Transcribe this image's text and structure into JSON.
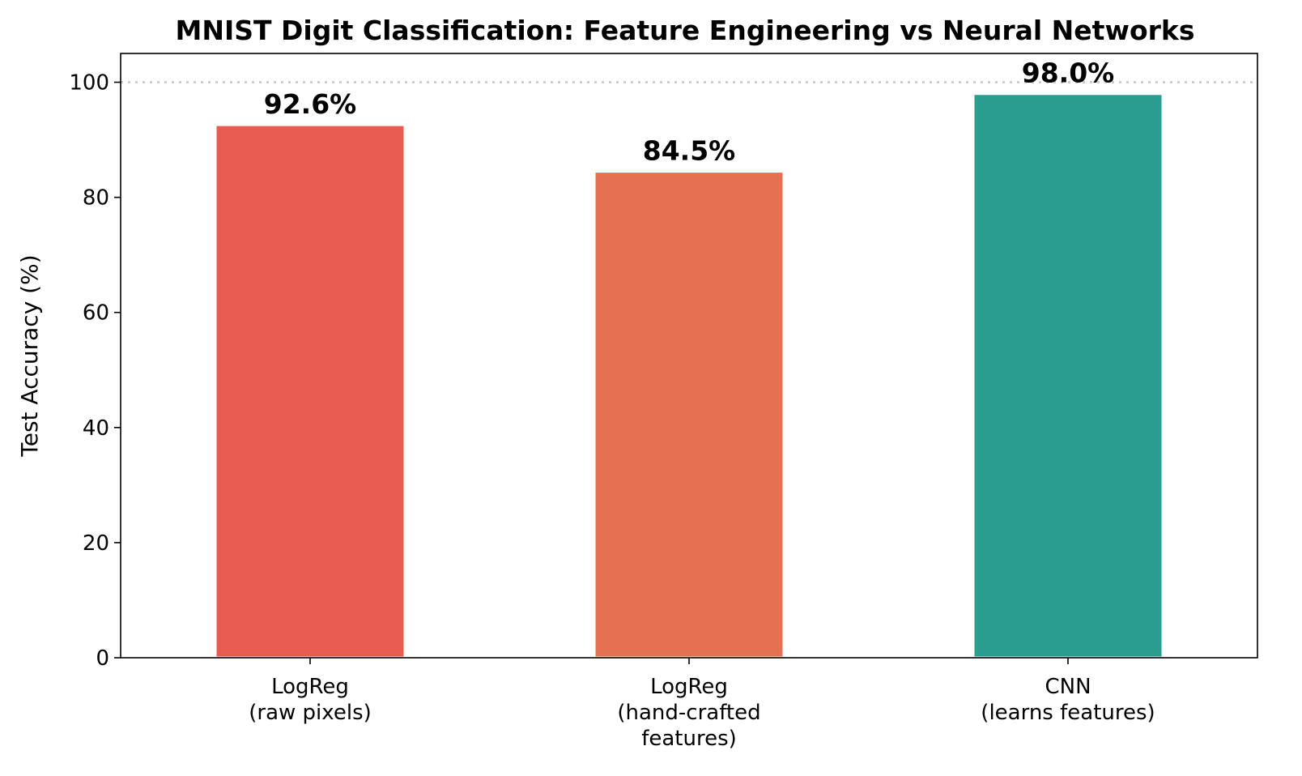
{
  "chart_data": {
    "type": "bar",
    "title": "MNIST Digit Classification: Feature Engineering vs Neural Networks",
    "xlabel": "",
    "ylabel": "Test Accuracy (%)",
    "ylim": [
      0,
      105
    ],
    "yticks": [
      0,
      20,
      40,
      60,
      80,
      100
    ],
    "reference_line": {
      "y": 100,
      "style": "dotted",
      "color": "#cccccc"
    },
    "grid": false,
    "categories": [
      [
        "LogReg",
        "(raw pixels)"
      ],
      [
        "LogReg",
        "(hand-crafted",
        "features)"
      ],
      [
        "CNN",
        "(learns features)"
      ]
    ],
    "values": [
      92.6,
      84.5,
      98.0
    ],
    "value_labels": [
      "92.6%",
      "84.5%",
      "98.0%"
    ],
    "colors": [
      "#e85b50",
      "#e57052",
      "#2a9d8f"
    ]
  }
}
